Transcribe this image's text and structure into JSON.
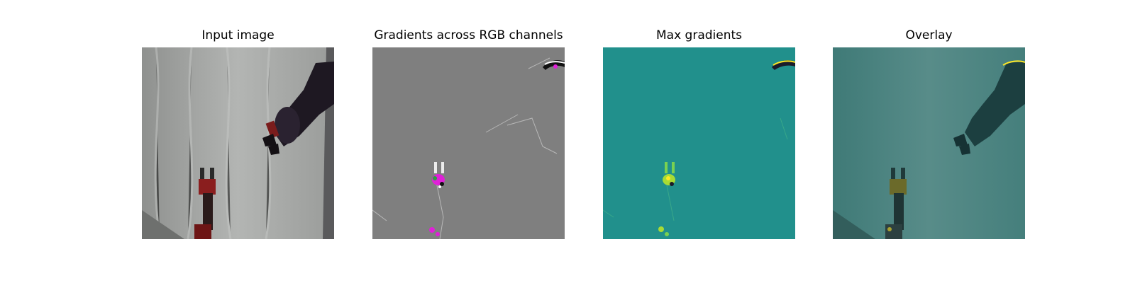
{
  "panels": [
    {
      "title": "Input image"
    },
    {
      "title": "Gradients across RGB channels"
    },
    {
      "title": "Max gradients"
    },
    {
      "title": "Overlay"
    }
  ],
  "colors": {
    "backdrop_gray": "#a9aba9",
    "rgb_gradient_gray": "#7f7f7f",
    "max_gradient_teal": "#21908c",
    "overlay_teal": "#4a7f7c",
    "highlight_yellow": "#fde725",
    "highlight_magenta": "#e020d8",
    "arm_dark": "#1e1822",
    "gripper_red": "#8a1e1e"
  }
}
